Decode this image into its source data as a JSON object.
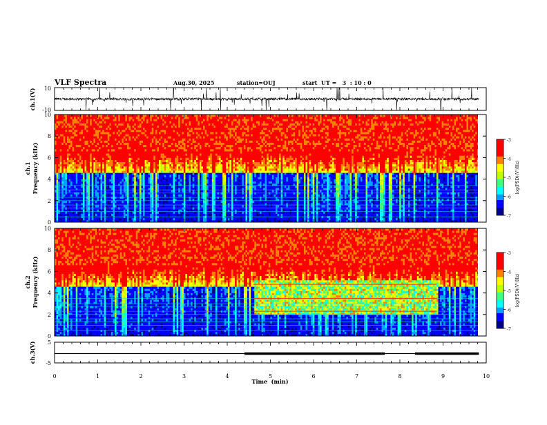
{
  "header": {
    "title": "VLF Spectra",
    "date": "Aug.30, 2025",
    "station": "station=OUJ",
    "start": "start  UT =   3  : 10 : 0"
  },
  "chart_data": [
    {
      "type": "line",
      "panel": "ch1-waveform",
      "ylabel": "ch.1(V)",
      "ylim": [
        -10,
        10
      ],
      "ytick_labels": [
        "10",
        "-10"
      ],
      "x_range_min": [
        0,
        9.83
      ],
      "baseline_v": 0,
      "color": "#000000"
    },
    {
      "type": "heatmap",
      "panel": "ch1-spectrogram",
      "ylabel": "ch.1\nFrequency (kHz)",
      "ylim": [
        0,
        10
      ],
      "yticks": [
        0,
        2,
        4,
        6,
        8,
        10
      ],
      "colorbar": {
        "label": "log(PSD)(V²/Hz)",
        "range": [
          -7,
          -3
        ],
        "ticks": [
          "-3",
          "-4",
          "-5",
          "-6",
          "-7"
        ],
        "colormap": [
          "#00008b",
          "#0000ff",
          "#00a0ff",
          "#00ffff",
          "#40ff80",
          "#c0ff00",
          "#ffff00",
          "#ff8000",
          "#ff0000",
          "#ff0000"
        ]
      },
      "spectral_lines_khz": [
        0.5,
        1.0,
        1.3,
        1.6,
        2.0,
        2.3,
        2.7,
        3.0,
        3.4
      ],
      "emissions": []
    },
    {
      "type": "heatmap",
      "panel": "ch2-spectrogram",
      "ylabel": "ch.2\nFrequency (kHz)",
      "ylim": [
        0,
        10
      ],
      "yticks": [
        0,
        2,
        4,
        6,
        8,
        10
      ],
      "colorbar": {
        "label": "log(PSD)(V²/Hz)",
        "range": [
          -7,
          -3
        ],
        "ticks": [
          "-3",
          "-4",
          "-5",
          "-6",
          "-7"
        ],
        "colormap": [
          "#00008b",
          "#0000ff",
          "#00a0ff",
          "#00ffff",
          "#40ff80",
          "#c0ff00",
          "#ffff00",
          "#ff8000",
          "#ff0000",
          "#ff0000"
        ]
      },
      "spectral_lines_khz": [
        0.5,
        1.0,
        1.3,
        1.6,
        2.0,
        2.3,
        2.7,
        3.0,
        3.5
      ],
      "emissions": [
        {
          "t_min": 4.6,
          "t_max": 8.85,
          "f_khz": [
            2.0,
            5.0
          ]
        }
      ]
    },
    {
      "type": "line",
      "panel": "ch3-level",
      "ylabel": "ch.3(V)",
      "ylim": [
        -5,
        5
      ],
      "ytick_labels": [
        "5",
        "-5"
      ],
      "segments": [
        {
          "t0": 0,
          "t1": 4.4,
          "v": -0.5,
          "width": "thin"
        },
        {
          "t0": 4.4,
          "t1": 7.65,
          "v": -0.5,
          "width": "thick"
        },
        {
          "t0": 7.65,
          "t1": 8.35,
          "v": -0.5,
          "width": "thin"
        },
        {
          "t0": 8.35,
          "t1": 9.83,
          "v": -0.5,
          "width": "thick"
        }
      ]
    }
  ],
  "xaxis": {
    "label": "Time  (min)",
    "range": [
      0,
      10
    ],
    "ticks": [
      "0",
      "1",
      "2",
      "3",
      "4",
      "5",
      "6",
      "7",
      "8",
      "9",
      "10"
    ]
  }
}
